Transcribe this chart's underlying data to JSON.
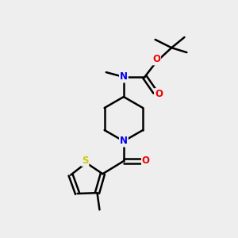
{
  "background_color": "#eeeeee",
  "atom_colors": {
    "C": "#000000",
    "N": "#0000ee",
    "O": "#ee0000",
    "S": "#cccc00"
  },
  "figsize": [
    3.0,
    3.0
  ],
  "dpi": 100
}
